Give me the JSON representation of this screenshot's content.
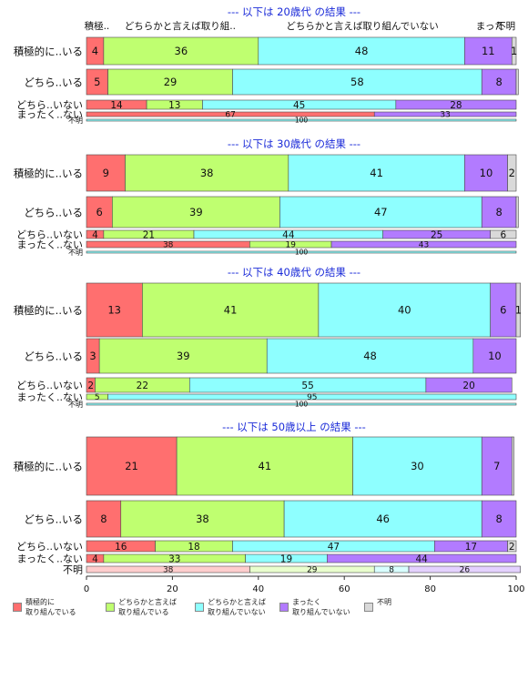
{
  "chart_data": {
    "type": "bar",
    "orientation": "horizontal",
    "stacked": true,
    "xlim": [
      0,
      100
    ],
    "x_ticks": [
      "0",
      "20",
      "40",
      "60",
      "80",
      "100"
    ],
    "colors": [
      "#ff6f6f",
      "#bfff70",
      "#8effff",
      "#b27bff",
      "#d9d9d9"
    ],
    "legend": [
      "積極的に\n取り組んでいる",
      "どちらかと言えば\n取り組んでいる",
      "どちらかと言えば\n取り組んでいない",
      "まったく\n取り組んでいない",
      "不明"
    ],
    "panels": [
      {
        "title": "--- 以下は 20歳代 の結果 ---",
        "header_labels": [
          "積極..",
          "どちらかと言えば取り組..",
          "どちらかと言えば取り組んでいない",
          "まった",
          "不明"
        ],
        "rows": [
          {
            "label": "積極的に..いる",
            "values": [
              4,
              36,
              48,
              11,
              1
            ],
            "labels": [
              "4",
              "36",
              "48",
              "11",
              "1"
            ]
          },
          {
            "label": "どちら..いる",
            "values": [
              5,
              29,
              58,
              8,
              0.5
            ],
            "labels": [
              "5",
              "29",
              "58",
              "8",
              ""
            ]
          },
          {
            "label": "どちら..いない",
            "values": [
              14,
              13,
              45,
              28,
              0
            ],
            "labels": [
              "14",
              "13",
              "45",
              "28",
              ""
            ]
          },
          {
            "label": "まったく..ない",
            "values": [
              67,
              0,
              0,
              33,
              0
            ],
            "labels": [
              "67",
              "",
              "",
              "33",
              ""
            ]
          },
          {
            "label": "不明",
            "values": [
              0,
              0,
              100,
              0,
              0
            ],
            "labels": [
              "",
              "",
              "100",
              "",
              ""
            ]
          }
        ]
      },
      {
        "title": "--- 以下は 30歳代 の結果 ---",
        "header_labels": [],
        "rows": [
          {
            "label": "積極的に..いる",
            "values": [
              9,
              38,
              41,
              10,
              2
            ],
            "labels": [
              "9",
              "38",
              "41",
              "10",
              "2"
            ]
          },
          {
            "label": "どちら..いる",
            "values": [
              6,
              39,
              47,
              8,
              0.5
            ],
            "labels": [
              "6",
              "39",
              "47",
              "8",
              ""
            ]
          },
          {
            "label": "どちら..いない",
            "values": [
              4,
              21,
              44,
              25,
              6
            ],
            "labels": [
              "4",
              "21",
              "44",
              "25",
              "6"
            ]
          },
          {
            "label": "まったく..ない",
            "values": [
              38,
              19,
              0,
              43,
              0
            ],
            "labels": [
              "38",
              "19",
              "",
              "43",
              ""
            ]
          },
          {
            "label": "不明",
            "values": [
              0,
              0,
              100,
              0,
              0
            ],
            "labels": [
              "",
              "",
              "100",
              "",
              ""
            ]
          }
        ]
      },
      {
        "title": "--- 以下は 40歳代 の結果 ---",
        "header_labels": [],
        "rows": [
          {
            "label": "積極的に..いる",
            "values": [
              13,
              41,
              40,
              6,
              1
            ],
            "labels": [
              "13",
              "41",
              "40",
              "6",
              "1"
            ]
          },
          {
            "label": "どちら..いる",
            "values": [
              3,
              39,
              48,
              10,
              0
            ],
            "labels": [
              "3",
              "39",
              "48",
              "10",
              ""
            ]
          },
          {
            "label": "どちら..いない",
            "values": [
              2,
              22,
              55,
              20,
              0
            ],
            "labels": [
              "2",
              "22",
              "55",
              "20",
              ""
            ]
          },
          {
            "label": "まったく..ない",
            "values": [
              0,
              5,
              95,
              0,
              0
            ],
            "labels": [
              "",
              "5",
              "95",
              "",
              ""
            ]
          },
          {
            "label": "不明",
            "values": [
              0,
              0,
              100,
              0,
              0
            ],
            "labels": [
              "",
              "",
              "100",
              "",
              ""
            ]
          }
        ]
      },
      {
        "title": "--- 以下は 50歳以上 の結果 ---",
        "header_labels": [],
        "rows": [
          {
            "label": "積極的に..いる",
            "values": [
              21,
              41,
              30,
              7,
              0.5
            ],
            "labels": [
              "21",
              "41",
              "30",
              "7",
              ""
            ]
          },
          {
            "label": "どちら..いる",
            "values": [
              8,
              38,
              46,
              8,
              0
            ],
            "labels": [
              "8",
              "38",
              "46",
              "8",
              ""
            ]
          },
          {
            "label": "どちら..いない",
            "values": [
              16,
              18,
              47,
              17,
              2
            ],
            "labels": [
              "16",
              "18",
              "47",
              "17",
              "2"
            ]
          },
          {
            "label": "まったく..ない",
            "values": [
              4,
              33,
              19,
              44,
              0
            ],
            "labels": [
              "4",
              "33",
              "19",
              "44",
              ""
            ]
          },
          {
            "label": "不明",
            "values": [
              38,
              29,
              8,
              26,
              0
            ],
            "labels": [
              "38",
              "29",
              "8",
              "26",
              ""
            ],
            "faded": true
          }
        ]
      }
    ]
  }
}
